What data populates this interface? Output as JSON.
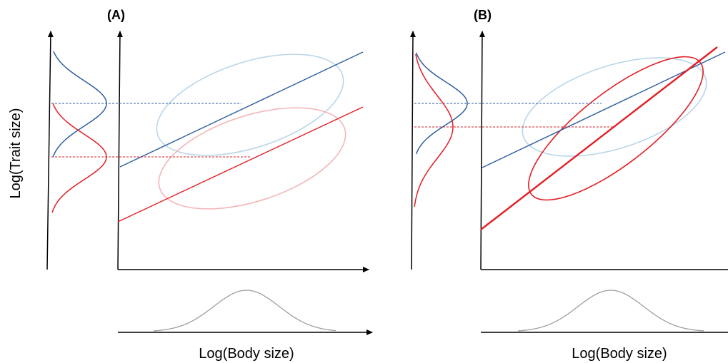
{
  "panels": [
    {
      "label": "(A)"
    },
    {
      "label": "(B)"
    }
  ],
  "y_axis_label": "Log(Trait size)",
  "x_axis_label": "Log(Body size)",
  "colors": {
    "blue": "#2e5fa3",
    "red": "#e31e24",
    "light_blue": "#b9d6ea",
    "light_red": "#f4b6b8",
    "gray": "#9e9e9e",
    "axis": "#000000"
  }
}
